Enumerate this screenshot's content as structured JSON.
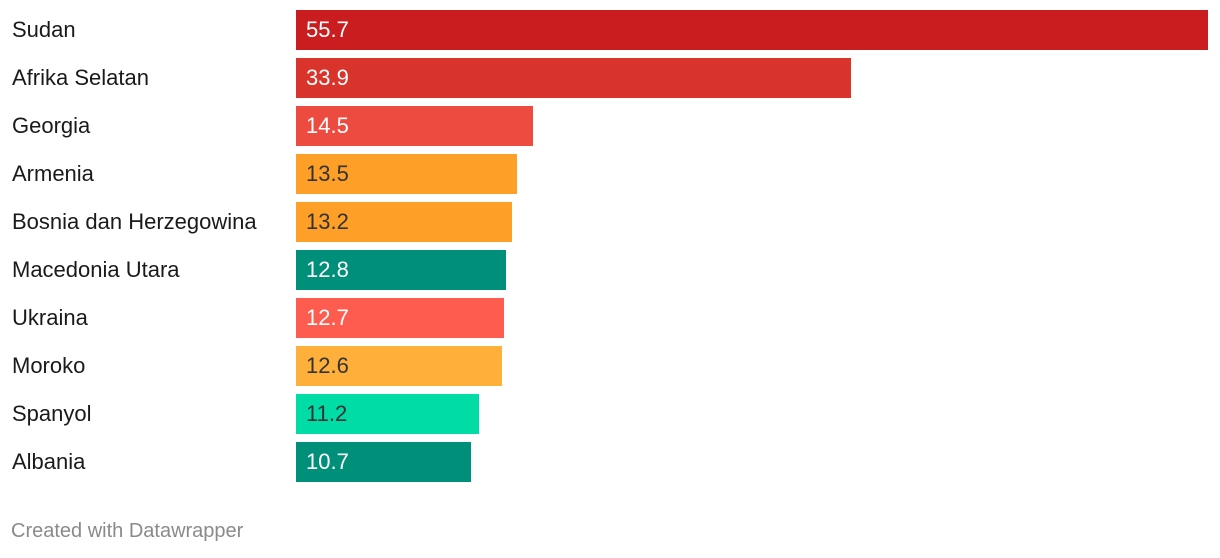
{
  "chart_data": {
    "type": "bar",
    "orientation": "horizontal",
    "categories": [
      "Sudan",
      "Afrika Selatan",
      "Georgia",
      "Armenia",
      "Bosnia dan Herzegowina",
      "Macedonia Utara",
      "Ukraina",
      "Moroko",
      "Spanyol",
      "Albania"
    ],
    "values": [
      55.7,
      33.9,
      14.5,
      13.5,
      13.2,
      12.8,
      12.7,
      12.6,
      11.2,
      10.7
    ],
    "value_labels": [
      "55.7",
      "33.9",
      "14.5",
      "13.5",
      "13.2",
      "12.8",
      "12.7",
      "12.6",
      "11.2",
      "10.7"
    ],
    "bar_colors": [
      "#c91d1f",
      "#d9342b",
      "#ed4b3f",
      "#fe9f27",
      "#fe9f27",
      "#008f78",
      "#fe5c4f",
      "#ffb03b",
      "#00dca6",
      "#008f78"
    ],
    "label_colors": [
      "#ffffff",
      "#ffffff",
      "#ffffff",
      "#333333",
      "#333333",
      "#ffffff",
      "#ffffff",
      "#333333",
      "#333333",
      "#ffffff"
    ],
    "xlim": [
      0,
      55.7
    ],
    "grid": false,
    "legend": "none",
    "title": "",
    "xlabel": "",
    "ylabel": ""
  },
  "footer": {
    "credit": "Created with Datawrapper"
  }
}
